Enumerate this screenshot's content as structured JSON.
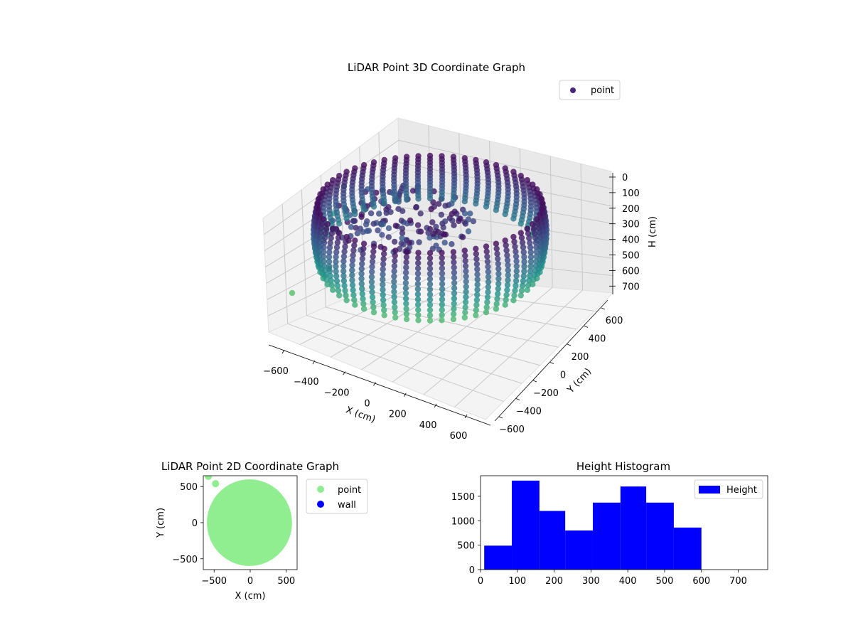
{
  "chart_data": [
    {
      "type": "scatter",
      "title": "LiDAR Point 3D Coordinate Graph",
      "xlabel": "X (cm)",
      "ylabel": "Y (cm)",
      "zlabel": "H (cm)",
      "x_ticks": [
        "−600",
        "−400",
        "−200",
        "0",
        "200",
        "400",
        "600"
      ],
      "y_ticks": [
        "600",
        "400",
        "200",
        "0",
        "−200",
        "−400",
        "−600"
      ],
      "z_ticks": [
        "0",
        "100",
        "200",
        "300",
        "400",
        "500",
        "600",
        "700"
      ],
      "xlim": [
        -650,
        650
      ],
      "ylim": [
        -650,
        650
      ],
      "zlim": [
        780,
        0
      ],
      "z_inverted": true,
      "colormap": [
        "#440154",
        "#3b528b",
        "#21918c",
        "#5ec962"
      ],
      "legend": {
        "entries": [
          {
            "label": "point",
            "color": "#482677"
          }
        ],
        "placement": "top-right"
      },
      "data_description_points": {
        "shape": "roughly circular wall ring of radius ~560 cm with vertical scan columns, height 0–600 cm, plus a few outlier points near the far wall",
        "ring_radius": 560,
        "height_range": [
          0,
          600
        ]
      }
    },
    {
      "type": "scatter",
      "title": "LiDAR Point 2D Coordinate Graph",
      "xlabel": "X (cm)",
      "ylabel": "Y (cm)",
      "x_ticks": [
        "−500",
        "0",
        "500"
      ],
      "y_ticks": [
        "500",
        "0",
        "−500"
      ],
      "xlim": [
        -650,
        650
      ],
      "ylim": [
        -650,
        650
      ],
      "series": [
        {
          "name": "point",
          "color": "#90ee90",
          "shape": "filled disc radius ~560 cm",
          "outliers": [
            [
              -580,
              640
            ],
            [
              -480,
              540
            ]
          ]
        },
        {
          "name": "wall",
          "color": "#0000ff",
          "points": []
        }
      ],
      "legend": {
        "placement": "outside-right"
      }
    },
    {
      "type": "bar",
      "title": "Height Histogram",
      "series": [
        {
          "name": "Height",
          "color": "#0000ff",
          "bins": [
            {
              "from": 10,
              "to": 85,
              "count": 490
            },
            {
              "from": 85,
              "to": 160,
              "count": 1820
            },
            {
              "from": 160,
              "to": 230,
              "count": 1200
            },
            {
              "from": 230,
              "to": 305,
              "count": 800
            },
            {
              "from": 305,
              "to": 380,
              "count": 1370
            },
            {
              "from": 380,
              "to": 450,
              "count": 1700
            },
            {
              "from": 450,
              "to": 525,
              "count": 1370
            },
            {
              "from": 525,
              "to": 600,
              "count": 860
            }
          ]
        }
      ],
      "x_ticks": [
        "0",
        "100",
        "200",
        "300",
        "400",
        "500",
        "600",
        "700"
      ],
      "y_ticks": [
        "0",
        "500",
        "1000",
        "1500"
      ],
      "xlim": [
        0,
        780
      ],
      "ylim": [
        0,
        1920
      ],
      "legend": {
        "placement": "top-right"
      }
    }
  ]
}
